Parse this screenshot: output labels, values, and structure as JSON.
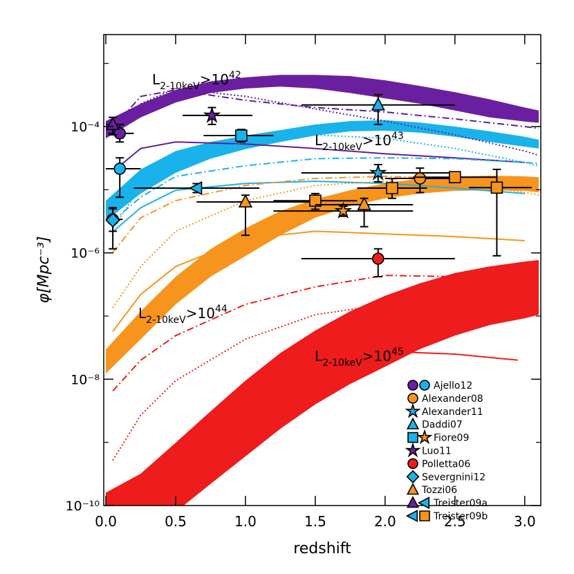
{
  "chart_data": {
    "type": "band-line-points",
    "x_label": "redshift",
    "y_label": "φ[Mpc⁻³]",
    "xlim": [
      -0.015,
      3.115
    ],
    "ylim": [
      1e-10,
      0.00286
    ],
    "log_y": true,
    "xticks": [
      {
        "value": 0,
        "label": "0.0"
      },
      0.5,
      {
        "value": 1,
        "label": "1.0"
      },
      1.5,
      {
        "value": 2,
        "label": "2.0"
      },
      2.5,
      {
        "value": 3,
        "label": "3.0"
      }
    ],
    "yticks": [
      {
        "value": 1e-10,
        "label": "10⁻¹⁰"
      },
      {
        "value": 1e-08,
        "label": "10⁻⁸"
      },
      {
        "value": 1e-06,
        "label": "10⁻⁶"
      },
      {
        "value": 0.0001,
        "label": "10⁻⁴"
      }
    ],
    "yminor": [
      1e-09,
      1e-07,
      1e-05,
      0.001
    ],
    "bands": [
      {
        "color": "#6a1fa0",
        "x": [
          0,
          0.25,
          0.5,
          0.75,
          1,
          1.25,
          1.5,
          1.75,
          2,
          2.25,
          2.5,
          2.75,
          3,
          3.1
        ],
        "upper": [
          0.000122,
          0.00023,
          0.00038,
          0.00052,
          0.0006,
          0.00066,
          0.00066,
          0.00063,
          0.00054,
          0.00044,
          0.00035,
          0.00027,
          0.0002,
          0.00018
        ],
        "lower": [
          6.5e-05,
          0.00014,
          0.00024,
          0.00034,
          0.0004,
          0.00043,
          0.0004,
          0.00034,
          0.00028,
          0.00023,
          0.00018,
          0.00014,
          0.00012,
          0.000115
        ]
      },
      {
        "color": "#1ab2ea",
        "x": [
          0,
          0.25,
          0.5,
          0.75,
          1,
          1.25,
          1.5,
          1.75,
          2,
          2.25,
          2.5,
          2.75,
          3,
          3.1
        ],
        "upper": [
          6.7e-06,
          2.1e-05,
          4.1e-05,
          5.7e-05,
          7.2e-05,
          8.8e-05,
          0.000108,
          0.000122,
          0.000126,
          0.000116,
          0.0001,
          8.4e-05,
          6.9e-05,
          6.2e-05
        ],
        "lower": [
          3.2e-06,
          8.7e-06,
          1.85e-05,
          3.1e-05,
          4.4e-05,
          5.7e-05,
          7.2e-05,
          8.4e-05,
          8.6e-05,
          8e-05,
          6.9e-05,
          5.7e-05,
          4.8e-05,
          4.5e-05
        ]
      },
      {
        "color": "#f7941d",
        "x": [
          0,
          0.25,
          0.5,
          0.75,
          1,
          1.25,
          1.5,
          1.75,
          2,
          2.25,
          2.5,
          2.75,
          3,
          3.1
        ],
        "upper": [
          2.97e-08,
          1.19e-07,
          4.2e-07,
          1.15e-06,
          2.45e-06,
          4.6e-06,
          7.1e-06,
          9.8e-06,
          1.26e-05,
          1.51e-05,
          1.63e-05,
          1.67e-05,
          1.63e-05,
          1.58e-05
        ],
        "lower": [
          1.23e-08,
          4.3e-08,
          1.53e-07,
          4.2e-07,
          8.9e-07,
          1.9e-06,
          3.6e-06,
          5.5e-06,
          7.3e-06,
          8.7e-06,
          9.6e-06,
          9.8e-06,
          9.6e-06,
          9.1e-06
        ]
      },
      {
        "color": "#ee1c1c",
        "x": [
          0,
          0.25,
          0.5,
          0.75,
          1,
          1.25,
          1.5,
          1.75,
          2,
          2.25,
          2.5,
          2.75,
          3,
          3.1
        ],
        "upper": [
          1.6e-10,
          3.2e-10,
          9.9e-10,
          3.1e-09,
          9.5e-09,
          2.6e-08,
          5.9e-08,
          1.19e-07,
          2.1e-07,
          3.3e-07,
          4.8e-07,
          6.1e-07,
          7.3e-07,
          7.7e-07
        ],
        "lower": [
          2.9e-11,
          4.8e-11,
          7.9e-11,
          2.2e-10,
          6e-10,
          1.64e-09,
          4e-09,
          8.4e-09,
          1.58e-08,
          3e-08,
          4.9e-08,
          7.2e-08,
          9.2e-08,
          1.05e-07
        ]
      }
    ],
    "lines": [
      {
        "color": "#5e1f98",
        "style": "dashdot",
        "x": [
          0.05,
          0.25,
          0.5,
          1,
          1.5,
          2,
          2.5,
          3,
          3.1
        ],
        "values": [
          9.5e-05,
          0.0003,
          0.00038,
          0.00026,
          0.0002,
          0.00017,
          0.000132,
          0.0001,
          9.3e-05
        ]
      },
      {
        "color": "#5e1f98",
        "style": "dotted",
        "x": [
          0.05,
          0.25,
          0.5,
          1,
          1.5,
          2,
          2.5,
          3,
          3.1
        ],
        "values": [
          0.000108,
          0.00023,
          0.0004,
          0.0003,
          0.00019,
          0.000122,
          7.4e-05,
          4.1e-05,
          3.5e-05
        ]
      },
      {
        "color": "#5e1f98",
        "style": "solid",
        "x": [
          0.1,
          0.25,
          0.5,
          1,
          1.5,
          2,
          2.5,
          3
        ],
        "values": [
          2.4e-05,
          4.5e-05,
          5.7e-05,
          5.3e-05,
          4.5e-05,
          3.7e-05,
          3.2e-05,
          2.7e-05
        ]
      },
      {
        "color": "#1ab2ea",
        "style": "dashdot",
        "x": [
          0.05,
          0.25,
          0.5,
          1,
          1.5,
          2,
          2.5,
          3,
          3.1
        ],
        "values": [
          3.2e-06,
          7.6e-06,
          1.63e-05,
          2.4e-05,
          3.1e-05,
          3.2e-05,
          3.1e-05,
          2.7e-05,
          2.6e-05
        ]
      },
      {
        "color": "#1ab2ea",
        "style": "dotted",
        "x": [
          0.05,
          0.25,
          0.5,
          1,
          1.5,
          2,
          2.5,
          3,
          3.1
        ],
        "values": [
          2.45e-06,
          1.11e-05,
          3.1e-05,
          5.7e-05,
          7.4e-05,
          6.5e-05,
          4.5e-05,
          2.7e-05,
          2.4e-05
        ]
      },
      {
        "color": "#1ab2ea",
        "style": "solid",
        "x": [
          0.05,
          0.25,
          0.5,
          1,
          1.5,
          2,
          2.5,
          3
        ],
        "values": [
          2.16e-06,
          5.2e-06,
          9.8e-06,
          1.26e-05,
          1.36e-05,
          1.26e-05,
          1.06e-05,
          8.7e-06
        ]
      },
      {
        "color": "#f7941d",
        "style": "dashdot",
        "x": [
          0.05,
          0.25,
          0.5,
          1,
          1.5,
          2,
          2.5,
          3,
          3.1
        ],
        "values": [
          1.02e-06,
          3.6e-06,
          6.7e-06,
          1.17e-05,
          1.51e-05,
          1.63e-05,
          1.51e-05,
          1.17e-05,
          1.11e-05
        ]
      },
      {
        "color": "#f7941d",
        "style": "dotted",
        "x": [
          0.05,
          0.25,
          0.5,
          1,
          1.5,
          2,
          2.5,
          3,
          3.1
        ],
        "values": [
          1.35e-07,
          6.1e-07,
          2.2e-06,
          6.7e-06,
          1.17e-05,
          1.36e-05,
          1.26e-05,
          9.1e-06,
          8.2e-06
        ]
      },
      {
        "color": "#f7941d",
        "style": "solid",
        "x": [
          0.05,
          0.25,
          0.5,
          1,
          1.5,
          2,
          2.5,
          3
        ],
        "values": [
          5.7e-08,
          2.2e-07,
          6.1e-07,
          1.68e-06,
          2.2e-06,
          2e-06,
          1.81e-06,
          1.56e-06
        ]
      },
      {
        "color": "#ee1c1c",
        "style": "dashdot",
        "x": [
          0.05,
          0.25,
          0.5,
          1,
          1.5,
          2,
          2.5,
          3,
          3.1
        ],
        "values": [
          6.5e-09,
          2e-08,
          4.9e-08,
          1.53e-07,
          2.9e-07,
          4.4e-07,
          4.2e-07,
          3.7e-07,
          3.6e-07
        ]
      },
      {
        "color": "#ee1c1c",
        "style": "dotted",
        "x": [
          0.05,
          0.25,
          0.5,
          1,
          1.5,
          2,
          2.5,
          3,
          3.1
        ],
        "values": [
          5.2e-10,
          2.7e-09,
          9.5e-09,
          4.3e-08,
          1.05e-07,
          1.53e-07,
          1.53e-07,
          1.35e-07,
          1.25e-07
        ]
      },
      {
        "color": "#ee1c1c",
        "style": "solid",
        "x": [
          1.35,
          1.9,
          2.0,
          2.5,
          2.95
        ],
        "values": [
          1.03e-08,
          3e-08,
          2.75e-08,
          2.5e-08,
          2e-08
        ]
      }
    ],
    "points": [
      {
        "shape": "circle",
        "color": "#6a1fa0",
        "x": 0.1,
        "y": 7.8e-05,
        "xrange": [
          0.02,
          0.2
        ],
        "yrange": [
          5.7e-05,
          0.000108
        ]
      },
      {
        "shape": "triangle",
        "color": "#6a1fa0",
        "x": 0.05,
        "y": 0.000108,
        "xrange": [
          0,
          0.12
        ],
        "yrange": [
          7.4e-05,
          0.00014
        ]
      },
      {
        "shape": "circle",
        "color": "#1ab2ea",
        "x": 0.1,
        "y": 2.15e-05,
        "xrange": [
          0,
          0.25
        ],
        "yrange": [
          7.6e-06,
          3.2e-05
        ]
      },
      {
        "shape": "circle",
        "color": "#1ab2ea",
        "x": 0.05,
        "y": 3.4e-06,
        "xrange": [
          0,
          0.12
        ],
        "yrange": [
          1.16e-06,
          5.2e-06
        ]
      },
      {
        "shape": "diamond",
        "color": "#1ab2ea",
        "x": 0.05,
        "y": 3.3e-06,
        "xrange": [
          0,
          0.1
        ],
        "yrange": [
          2.2e-06,
          5e-06
        ]
      },
      {
        "shape": "star",
        "color": "#6a1fa0",
        "x": 0.76,
        "y": 0.00015,
        "xrange": [
          0.55,
          1.05
        ],
        "yrange": [
          0.000108,
          0.0002
        ]
      },
      {
        "shape": "square",
        "color": "#1ab2ea",
        "x": 0.97,
        "y": 7.2e-05,
        "xrange": [
          0.7,
          1.2
        ],
        "yrange": [
          5.7e-05,
          9e-05
        ]
      },
      {
        "shape": "triangle",
        "color": "#1ab2ea",
        "x": 1.95,
        "y": 0.00022,
        "xrange": [
          1.4,
          2.5
        ],
        "yrange": [
          0.000108,
          0.00032
        ]
      },
      {
        "shape": "star",
        "color": "#1ab2ea",
        "x": 1.95,
        "y": 1.85e-05,
        "xrange": [
          1.4,
          2.5
        ],
        "yrange": [
          1.33e-05,
          2.5e-05
        ]
      },
      {
        "shape": "left",
        "color": "#1ab2ea",
        "x": 0.65,
        "y": 1.06e-05,
        "xrange": [
          0.2,
          1.1
        ],
        "yrange": [
          9e-06,
          1.25e-05
        ]
      },
      {
        "shape": "triangle",
        "color": "#f7941d",
        "x": 1.0,
        "y": 6.4e-06,
        "xrange": [
          0.65,
          1.5
        ],
        "yrange": [
          1.9e-06,
          8.2e-06
        ]
      },
      {
        "shape": "square",
        "color": "#f7941d",
        "x": 1.5,
        "y": 6.7e-06,
        "xrange": [
          1.2,
          1.8
        ],
        "yrange": [
          4.9e-06,
          8.7e-06
        ]
      },
      {
        "shape": "star",
        "color": "#f7941d",
        "x": 1.7,
        "y": 4.6e-06,
        "xrange": [
          1.2,
          2.2
        ],
        "yrange": [
          3.8e-06,
          5.5e-06
        ]
      },
      {
        "shape": "triangle",
        "color": "#f7941d",
        "x": 1.85,
        "y": 5.8e-06,
        "xrange": [
          1.5,
          2.2
        ],
        "yrange": [
          2.6e-06,
          7.3e-06
        ]
      },
      {
        "shape": "square",
        "color": "#f7941d",
        "x": 2.05,
        "y": 1.06e-05,
        "xrange": [
          1.8,
          2.3
        ],
        "yrange": [
          7.3e-06,
          1.5e-05
        ]
      },
      {
        "shape": "circle",
        "color": "#f7941d",
        "x": 2.25,
        "y": 1.51e-05,
        "xrange": [
          2.0,
          2.5
        ],
        "yrange": [
          9e-06,
          2.2e-05
        ]
      },
      {
        "shape": "square",
        "color": "#f7941d",
        "x": 2.5,
        "y": 1.58e-05,
        "xrange": [
          2.2,
          2.8
        ],
        "yrange": [
          1.3e-05,
          1.9e-05
        ]
      },
      {
        "shape": "square",
        "color": "#f7941d",
        "x": 2.8,
        "y": 1.08e-05,
        "xrange": [
          2.6,
          3.05
        ],
        "yrange": [
          9e-07,
          2.1e-05
        ]
      },
      {
        "shape": "circle",
        "color": "#ee1c1c",
        "x": 1.95,
        "y": 8.1e-07,
        "xrange": [
          1.4,
          2.5
        ],
        "yrange": [
          4.2e-07,
          1.16e-06
        ]
      }
    ],
    "annotations": [
      {
        "text": "L",
        "sub": "2-10keV",
        "mid": ">10",
        "sup": "42"
      },
      {
        "text": "L",
        "sub": "2-10keV",
        "mid": ">10",
        "sup": "43"
      },
      {
        "text": "L",
        "sub": "2-10keV",
        "mid": ">10",
        "sup": "44"
      },
      {
        "text": "L",
        "sub": "2-10keV",
        "mid": ">10",
        "sup": "45"
      }
    ],
    "legend": {
      "corner": "lower right",
      "entries": [
        {
          "label": "Ajello12",
          "markers": [
            {
              "shape": "circle",
              "color": "#6a1fa0"
            },
            {
              "shape": "circle",
              "color": "#1ab2ea"
            }
          ]
        },
        {
          "label": "Alexander08",
          "markers": [
            {
              "shape": "circle",
              "color": "#f7941d"
            }
          ]
        },
        {
          "label": "Alexander11",
          "markers": [
            {
              "shape": "star",
              "color": "#1ab2ea"
            }
          ]
        },
        {
          "label": "Daddi07",
          "markers": [
            {
              "shape": "triangle",
              "color": "#1ab2ea"
            }
          ]
        },
        {
          "label": "Fiore09",
          "markers": [
            {
              "shape": "square",
              "color": "#1ab2ea"
            },
            {
              "shape": "star",
              "color": "#f7941d"
            }
          ]
        },
        {
          "label": "Luo11",
          "markers": [
            {
              "shape": "star",
              "color": "#6a1fa0"
            }
          ]
        },
        {
          "label": "Polletta06",
          "markers": [
            {
              "shape": "circle",
              "color": "#ee1c1c"
            }
          ]
        },
        {
          "label": "Severgnini12",
          "markers": [
            {
              "shape": "diamond",
              "color": "#1ab2ea"
            }
          ]
        },
        {
          "label": "Tozzi06",
          "markers": [
            {
              "shape": "triangle",
              "color": "#f7941d"
            }
          ]
        },
        {
          "label": "Treister09a",
          "markers": [
            {
              "shape": "triangle",
              "color": "#6a1fa0"
            },
            {
              "shape": "left",
              "color": "#1ab2ea"
            }
          ]
        },
        {
          "label": "Treister09b",
          "markers": [
            {
              "shape": "left",
              "color": "#1ab2ea"
            },
            {
              "shape": "square",
              "color": "#f7941d"
            }
          ]
        }
      ]
    }
  }
}
